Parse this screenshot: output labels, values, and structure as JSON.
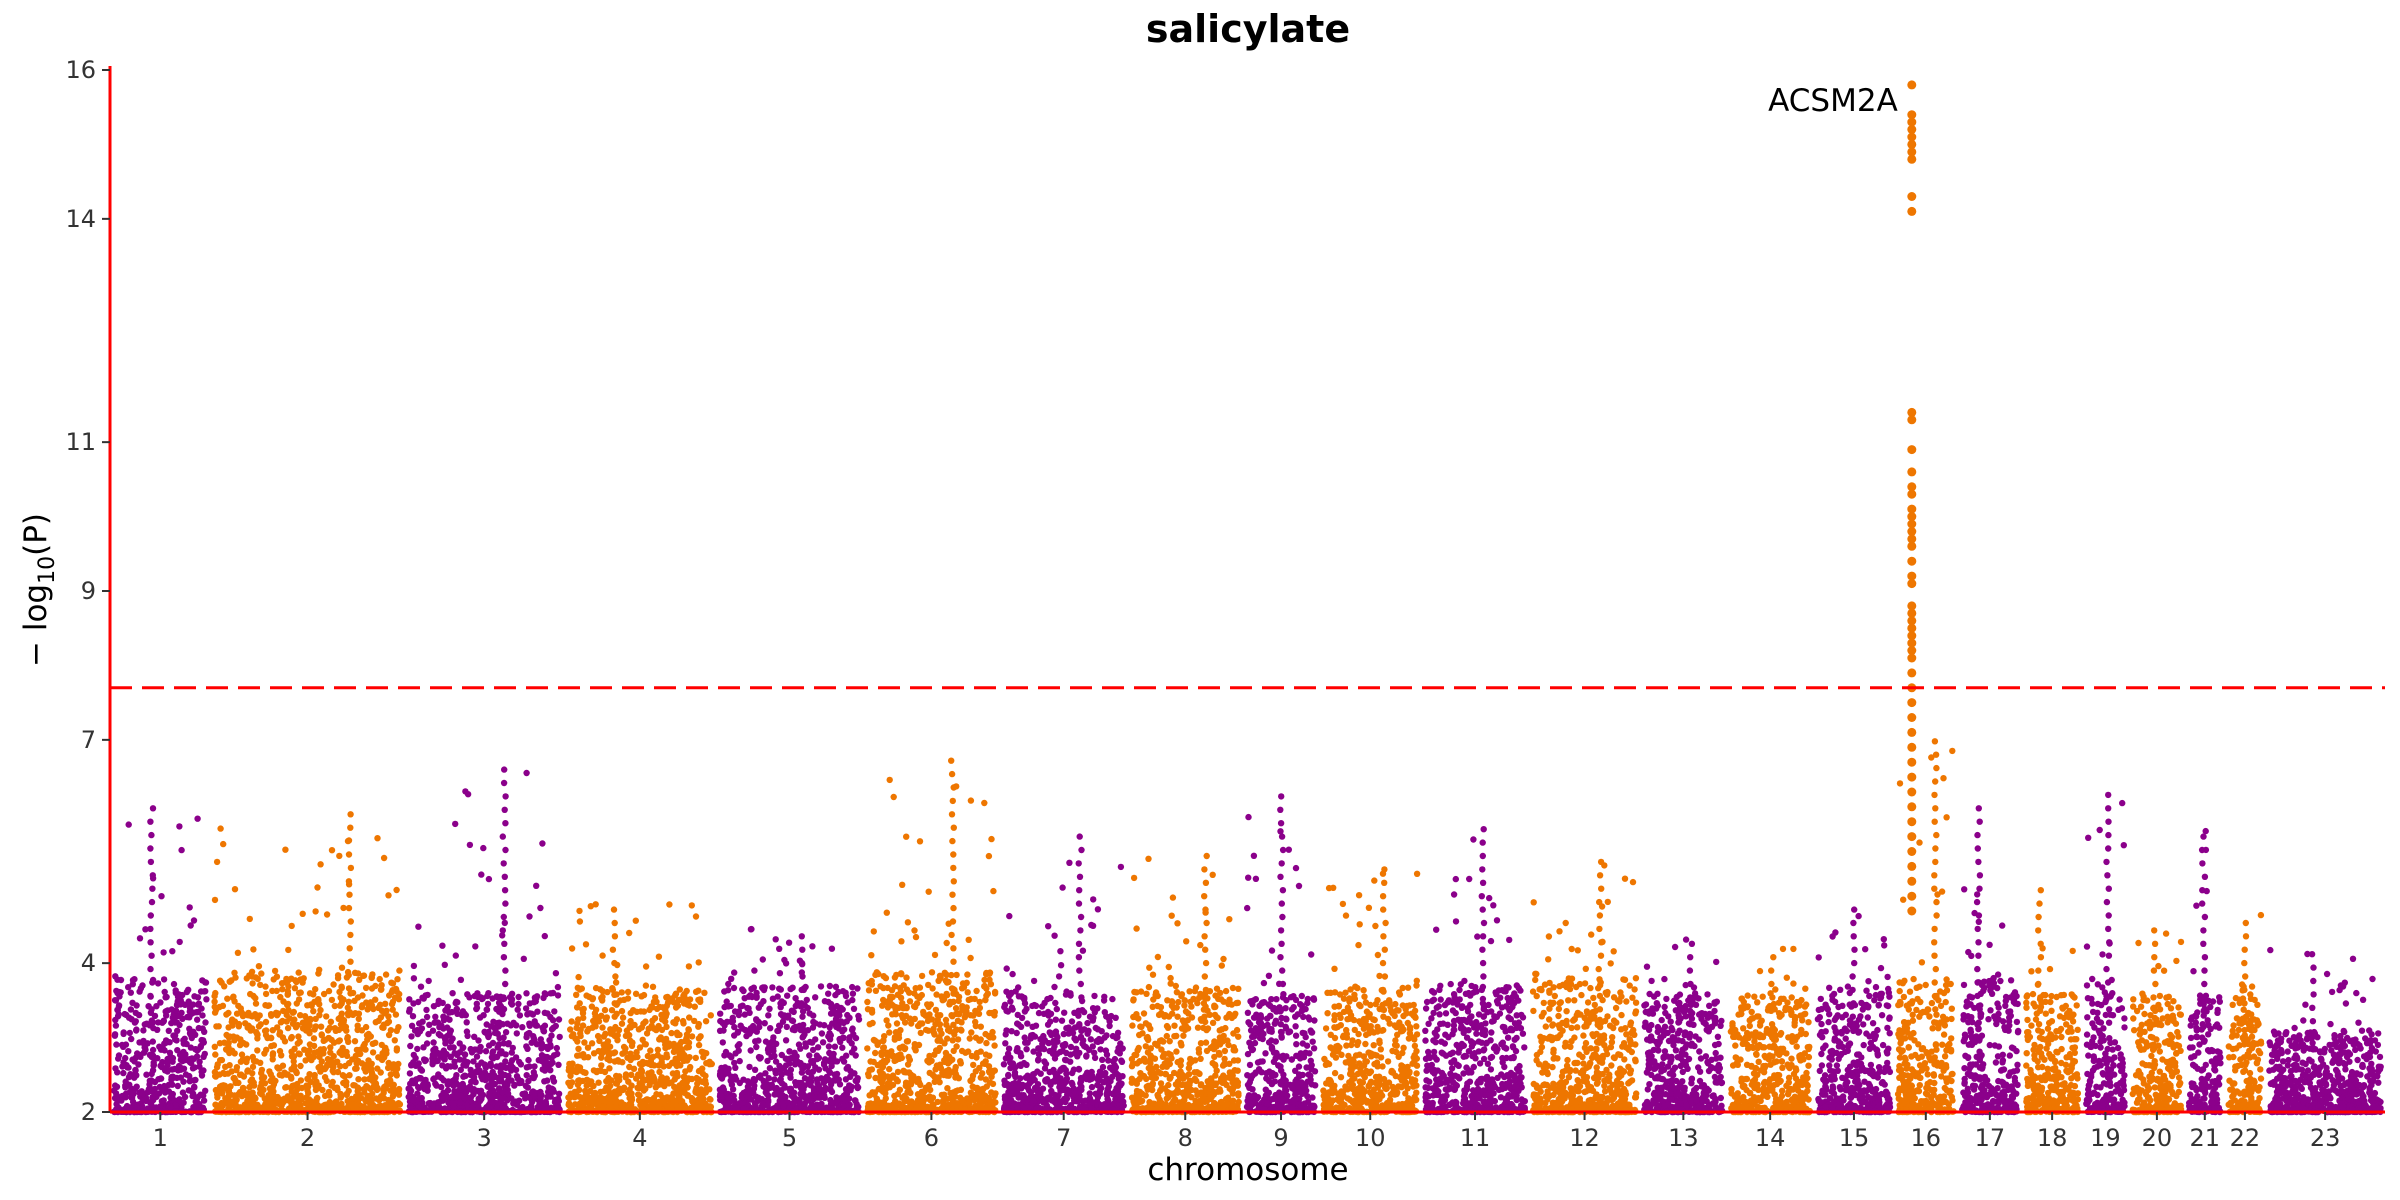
{
  "chart_data": {
    "type": "scatter",
    "subtype": "manhattan",
    "title": "salicylate",
    "xlabel": "chromosome",
    "ylabel": "−log10(P)",
    "ylim": [
      2,
      16
    ],
    "yticks": [
      2,
      4,
      7,
      9,
      11,
      14,
      16
    ],
    "significance_threshold": 7.7,
    "threshold_color": "#ff0000",
    "axis_color": "#ff0000",
    "grid": false,
    "legend": "none",
    "series_colors": [
      "#8b008b",
      "#ee7600"
    ],
    "chromosomes": [
      {
        "label": "1",
        "start": 0,
        "end": 84,
        "peak": 6.2,
        "bg": 3.2,
        "color": "#8b008b"
      },
      {
        "label": "2",
        "start": 84,
        "end": 246,
        "peak": 6.0,
        "bg": 3.3,
        "color": "#ee7600"
      },
      {
        "label": "3",
        "start": 246,
        "end": 379,
        "peak": 6.7,
        "bg": 3.0,
        "color": "#8b008b"
      },
      {
        "label": "4",
        "start": 379,
        "end": 506,
        "peak": 4.8,
        "bg": 3.1,
        "color": "#ee7600"
      },
      {
        "label": "5",
        "start": 506,
        "end": 629,
        "peak": 4.5,
        "bg": 3.1,
        "color": "#8b008b"
      },
      {
        "label": "6",
        "start": 629,
        "end": 743,
        "peak": 6.8,
        "bg": 3.3,
        "color": "#ee7600"
      },
      {
        "label": "7",
        "start": 743,
        "end": 850,
        "peak": 5.7,
        "bg": 3.0,
        "color": "#8b008b"
      },
      {
        "label": "8",
        "start": 850,
        "end": 946,
        "peak": 5.6,
        "bg": 3.1,
        "color": "#ee7600"
      },
      {
        "label": "9",
        "start": 946,
        "end": 1010,
        "peak": 6.3,
        "bg": 3.0,
        "color": "#8b008b"
      },
      {
        "label": "10",
        "start": 1010,
        "end": 1095,
        "peak": 5.3,
        "bg": 3.1,
        "color": "#ee7600"
      },
      {
        "label": "11",
        "start": 1095,
        "end": 1185,
        "peak": 5.9,
        "bg": 3.1,
        "color": "#8b008b"
      },
      {
        "label": "12",
        "start": 1185,
        "end": 1278,
        "peak": 5.5,
        "bg": 3.2,
        "color": "#ee7600"
      },
      {
        "label": "13",
        "start": 1278,
        "end": 1350,
        "peak": 4.4,
        "bg": 3.0,
        "color": "#8b008b"
      },
      {
        "label": "14",
        "start": 1350,
        "end": 1423,
        "peak": 4.2,
        "bg": 3.0,
        "color": "#ee7600"
      },
      {
        "label": "15",
        "start": 1423,
        "end": 1490,
        "peak": 4.8,
        "bg": 3.1,
        "color": "#8b008b"
      },
      {
        "label": "16",
        "start": 1490,
        "end": 1543,
        "peak": 15.8,
        "bg": 3.2,
        "color": "#ee7600"
      },
      {
        "label": "17",
        "start": 1543,
        "end": 1597,
        "peak": 6.1,
        "bg": 3.2,
        "color": "#8b008b"
      },
      {
        "label": "18",
        "start": 1597,
        "end": 1647,
        "peak": 5.0,
        "bg": 3.0,
        "color": "#ee7600"
      },
      {
        "label": "19",
        "start": 1647,
        "end": 1686,
        "peak": 6.3,
        "bg": 3.2,
        "color": "#8b008b"
      },
      {
        "label": "20",
        "start": 1686,
        "end": 1733,
        "peak": 4.5,
        "bg": 3.0,
        "color": "#ee7600"
      },
      {
        "label": "21",
        "start": 1733,
        "end": 1766,
        "peak": 5.8,
        "bg": 3.0,
        "color": "#8b008b"
      },
      {
        "label": "22",
        "start": 1766,
        "end": 1800,
        "peak": 4.7,
        "bg": 3.1,
        "color": "#ee7600"
      },
      {
        "label": "23",
        "start": 1800,
        "end": 1900,
        "peak": 4.2,
        "bg": 2.5,
        "color": "#8b008b"
      }
    ],
    "lead_hit": {
      "chromosome": "16",
      "label": "ACSM2A",
      "y": 15.8
    },
    "lead_hit_column": [
      15.8,
      15.4,
      15.3,
      15.2,
      15.1,
      15.0,
      14.9,
      14.8,
      14.3,
      14.1,
      11.4,
      11.3,
      10.9,
      10.6,
      10.4,
      10.3,
      10.1,
      10.0,
      9.9,
      9.8,
      9.7,
      9.6,
      9.4,
      9.2,
      9.1,
      8.8,
      8.7,
      8.6,
      8.5,
      8.4,
      8.3,
      8.2,
      8.1,
      7.9,
      7.7,
      7.5,
      7.3,
      7.1,
      6.9,
      6.7,
      6.5,
      6.3,
      6.1,
      5.9,
      5.7,
      5.5,
      5.3,
      5.1,
      4.9,
      4.7
    ]
  }
}
